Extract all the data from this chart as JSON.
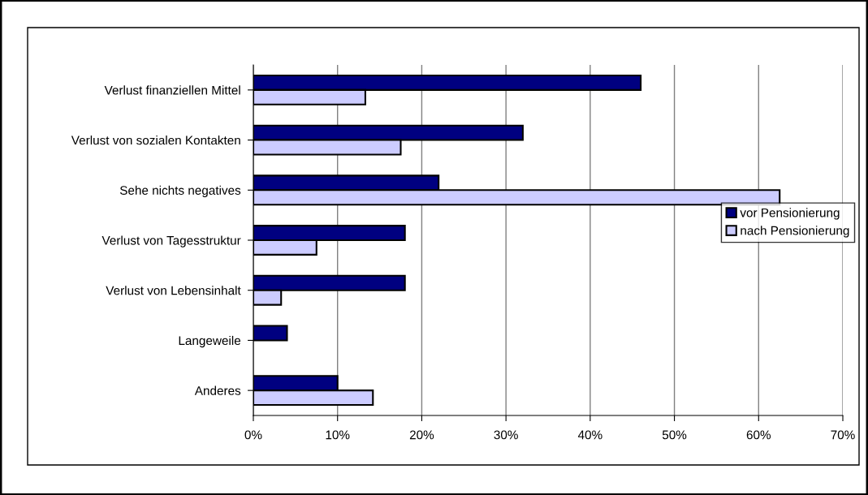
{
  "chart_data": {
    "type": "bar",
    "orientation": "horizontal",
    "categories": [
      "Verlust finanziellen Mittel",
      "Verlust von sozialen Kontakten",
      "Sehe nichts negatives",
      "Verlust von Tagesstruktur",
      "Verlust von Lebensinhalt",
      "Langeweile",
      "Anderes"
    ],
    "series": [
      {
        "name": "vor Pensionierung",
        "color": "#000080",
        "values": [
          46,
          32,
          22,
          18,
          18,
          4,
          10
        ]
      },
      {
        "name": "nach Pensionierung",
        "color": "#ccccff",
        "values": [
          13.3,
          17.5,
          62.5,
          7.5,
          3.3,
          null,
          14.2
        ]
      }
    ],
    "xlim": [
      0,
      70
    ],
    "xticks": [
      {
        "value": 0,
        "label": "0%"
      },
      {
        "value": 10,
        "label": "10%"
      },
      {
        "value": 20,
        "label": "20%"
      },
      {
        "value": 30,
        "label": "30%"
      },
      {
        "value": 40,
        "label": "40%"
      },
      {
        "value": 50,
        "label": "50%"
      },
      {
        "value": 60,
        "label": "60%"
      },
      {
        "value": 70,
        "label": "70%"
      }
    ],
    "grid": "x",
    "legend": "right"
  }
}
